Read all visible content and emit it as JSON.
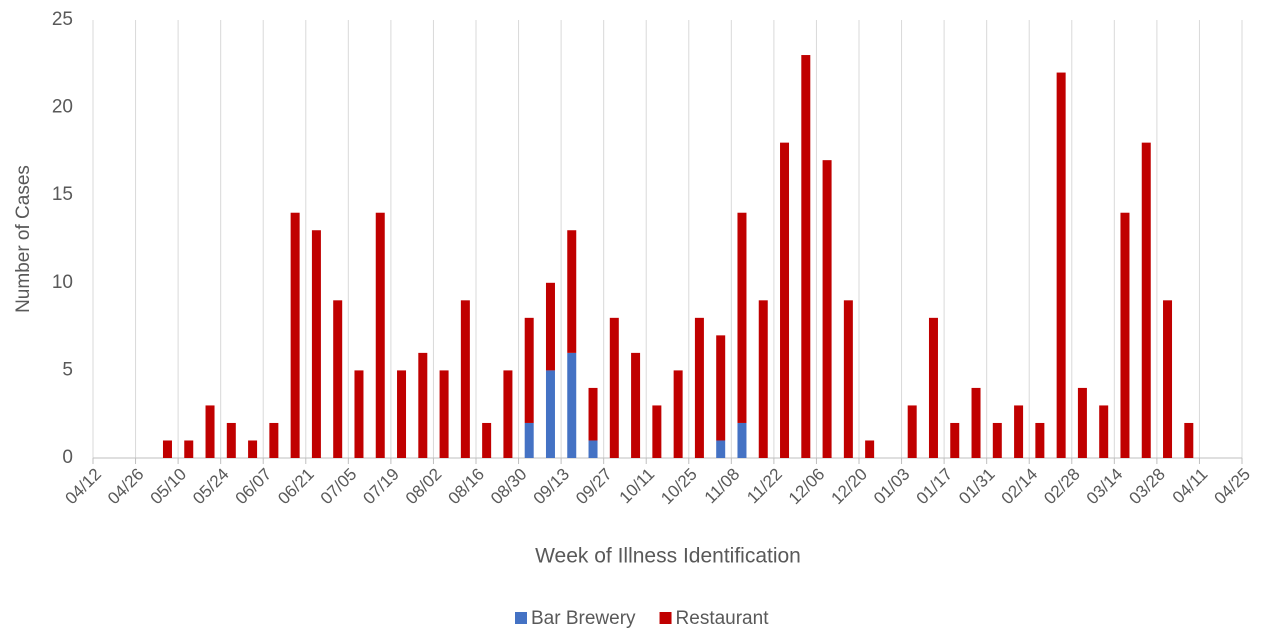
{
  "chart_data": {
    "type": "stacked_bar",
    "x_label": "Week of Illness Identification",
    "y_label": "Number of Cases",
    "xticks": [
      "04/12",
      "04/26",
      "05/10",
      "05/24",
      "06/07",
      "06/21",
      "07/05",
      "07/19",
      "08/02",
      "08/16",
      "08/30",
      "09/13",
      "09/27",
      "10/11",
      "10/25",
      "11/08",
      "11/22",
      "12/06",
      "12/20",
      "01/03",
      "01/17",
      "01/31",
      "02/14",
      "02/28",
      "03/14",
      "03/28",
      "04/11",
      "04/25"
    ],
    "series": [
      {
        "name": "Bar Brewery",
        "color": "#4472c4",
        "values": [
          0,
          0,
          0,
          0,
          0,
          0,
          0,
          0,
          0,
          0,
          0,
          0,
          0,
          0,
          0,
          0,
          0,
          0,
          0,
          0,
          2,
          5,
          6,
          1,
          0,
          0,
          0,
          0,
          0,
          1,
          2,
          0,
          0,
          0,
          0,
          0,
          0,
          0,
          0,
          0,
          0,
          0,
          0,
          0,
          0,
          0,
          0,
          0,
          0,
          0,
          0,
          0,
          0,
          0
        ]
      },
      {
        "name": "Restaurant",
        "color": "#c00000",
        "values": [
          0,
          0,
          0,
          1,
          1,
          3,
          2,
          1,
          2,
          14,
          13,
          9,
          5,
          14,
          5,
          6,
          5,
          9,
          2,
          5,
          6,
          5,
          7,
          3,
          8,
          6,
          3,
          5,
          8,
          6,
          12,
          9,
          18,
          23,
          17,
          9,
          1,
          0,
          3,
          8,
          2,
          4,
          2,
          3,
          2,
          22,
          4,
          3,
          14,
          18,
          9,
          2,
          0,
          0
        ]
      }
    ],
    "ylim": [
      0,
      25
    ],
    "yticks": [
      0,
      5,
      10,
      15,
      20,
      25
    ],
    "grid": true,
    "legend": "bottom"
  }
}
